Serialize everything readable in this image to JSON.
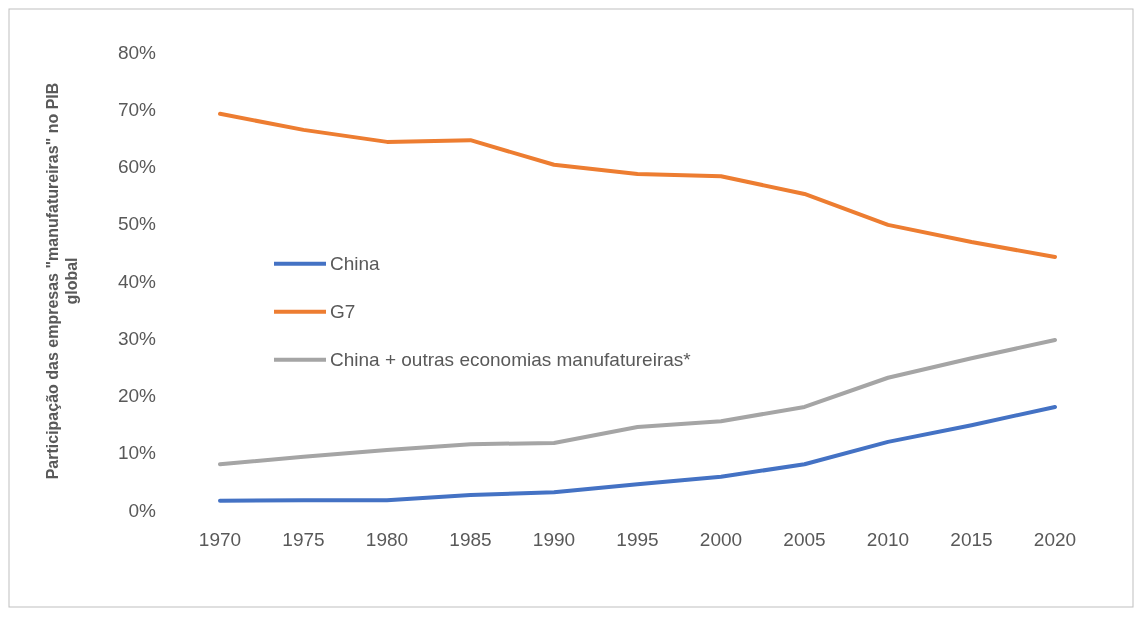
{
  "chart_data": {
    "type": "line",
    "ylabel": "Participação das empresas \"manufatureiras\"  no PIB global",
    "categories": [
      "1970",
      "1975",
      "1980",
      "1985",
      "1990",
      "1995",
      "2000",
      "2005",
      "2010",
      "2015",
      "2020"
    ],
    "series": [
      {
        "name": "China",
        "color": "#4472c4",
        "values": [
          1.6,
          1.7,
          1.7,
          2.6,
          3.1,
          4.5,
          5.8,
          8.0,
          11.9,
          14.8,
          18.0
        ]
      },
      {
        "name": "G7",
        "color": "#ed7d31",
        "values": [
          69.2,
          66.4,
          64.3,
          64.6,
          60.3,
          58.7,
          58.3,
          55.2,
          49.8,
          46.8,
          44.2
        ]
      },
      {
        "name": "China + outras economias manufatureiras*",
        "color": "#a5a5a5",
        "values": [
          8.0,
          9.3,
          10.5,
          11.5,
          11.7,
          14.5,
          15.5,
          18.0,
          23.1,
          26.5,
          29.7
        ]
      }
    ],
    "ylim": [
      0,
      80
    ],
    "yticks": [
      {
        "value": 0,
        "label": "0%"
      },
      {
        "value": 10,
        "label": "10%"
      },
      {
        "value": 20,
        "label": "20%"
      },
      {
        "value": 30,
        "label": "30%"
      },
      {
        "value": 40,
        "label": "40%"
      },
      {
        "value": 50,
        "label": "50%"
      },
      {
        "value": 60,
        "label": "60%"
      },
      {
        "value": 70,
        "label": "70%"
      },
      {
        "value": 80,
        "label": "80%"
      }
    ],
    "legend": "left",
    "grid": false,
    "marker": "none",
    "line_style": "solid"
  }
}
